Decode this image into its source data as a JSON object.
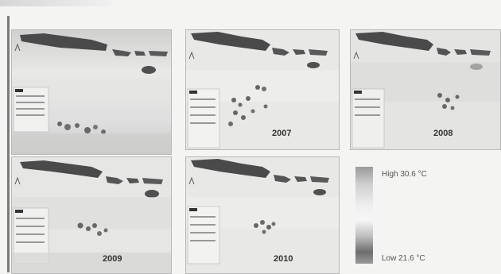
{
  "panels": [
    {
      "year": ""
    },
    {
      "year": "2007"
    },
    {
      "year": "2008"
    },
    {
      "year": "2009"
    },
    {
      "year": "2010"
    }
  ],
  "legend": {
    "high": "High  30.6 °C",
    "low": "Low  21.6 °C"
  }
}
